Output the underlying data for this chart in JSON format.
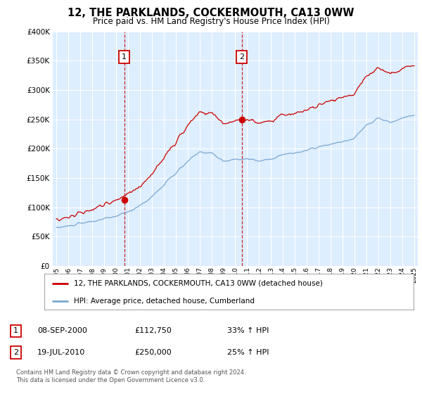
{
  "title": "12, THE PARKLANDS, COCKERMOUTH, CA13 0WW",
  "subtitle": "Price paid vs. HM Land Registry's House Price Index (HPI)",
  "legend_label_red": "12, THE PARKLANDS, COCKERMOUTH, CA13 0WW (detached house)",
  "legend_label_blue": "HPI: Average price, detached house, Cumberland",
  "sale1_date": "08-SEP-2000",
  "sale1_price": "£112,750",
  "sale1_hpi": "33% ↑ HPI",
  "sale2_date": "19-JUL-2010",
  "sale2_price": "£250,000",
  "sale2_hpi": "25% ↑ HPI",
  "footer": "Contains HM Land Registry data © Crown copyright and database right 2024.\nThis data is licensed under the Open Government Licence v3.0.",
  "ylim": [
    0,
    400000
  ],
  "yticks": [
    0,
    50000,
    100000,
    150000,
    200000,
    250000,
    300000,
    350000,
    400000
  ],
  "x_start_year": 1995,
  "x_end_year": 2025,
  "sale1_year": 2000.69,
  "sale2_year": 2010.54,
  "sale1_price_val": 112750,
  "sale2_price_val": 250000,
  "red_color": "#cc0000",
  "blue_color": "#7aa8d2",
  "marker_color": "#cc0000",
  "vline_color": "#cc0000",
  "bg_color": "#ddeeff",
  "grid_color": "#ffffff",
  "box_color": "#cc0000"
}
